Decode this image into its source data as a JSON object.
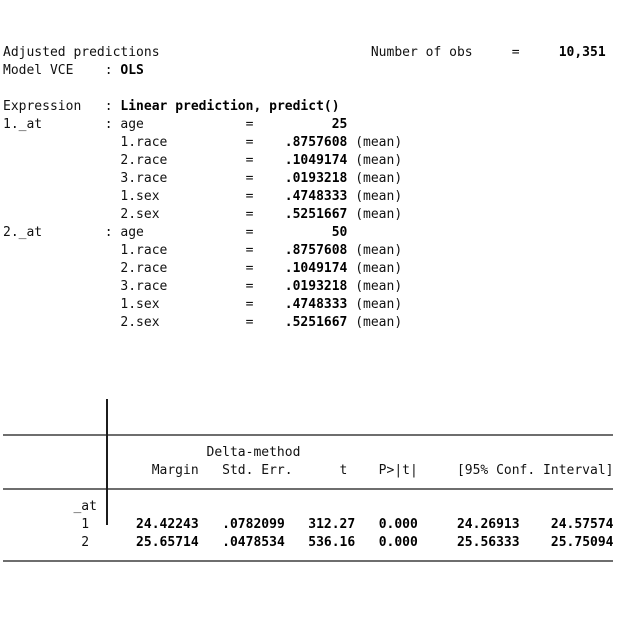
{
  "output": {
    "title": "Adjusted predictions",
    "number_of_obs": {
      "label": "Number of obs",
      "value": "10,351"
    },
    "model_vce": {
      "label": "Model VCE",
      "value": "OLS"
    },
    "expression": {
      "label": "Expression",
      "value": "Linear prediction, predict()"
    },
    "at_blocks": [
      {
        "label": "1._at",
        "var": "age",
        "value": "25",
        "terms": [
          {
            "name": "1.race",
            "value": ".8757608",
            "suffix": "(mean)"
          },
          {
            "name": "2.race",
            "value": ".1049174",
            "suffix": "(mean)"
          },
          {
            "name": "3.race",
            "value": ".0193218",
            "suffix": "(mean)"
          },
          {
            "name": "1.sex",
            "value": ".4748333",
            "suffix": "(mean)"
          },
          {
            "name": "2.sex",
            "value": ".5251667",
            "suffix": "(mean)"
          }
        ]
      },
      {
        "label": "2._at",
        "var": "age",
        "value": "50",
        "terms": [
          {
            "name": "1.race",
            "value": ".8757608",
            "suffix": "(mean)"
          },
          {
            "name": "2.race",
            "value": ".1049174",
            "suffix": "(mean)"
          },
          {
            "name": "3.race",
            "value": ".0193218",
            "suffix": "(mean)"
          },
          {
            "name": "1.sex",
            "value": ".4748333",
            "suffix": "(mean)"
          },
          {
            "name": "2.sex",
            "value": ".5251667",
            "suffix": "(mean)"
          }
        ]
      }
    ],
    "table": {
      "group_header": "Delta-method",
      "columns": [
        "Margin",
        "Std. Err.",
        "t",
        "P>|t|",
        "[95% Conf. Interval]"
      ],
      "row_group_label": "_at",
      "rows": [
        [
          "1",
          "24.42243",
          ".0782099",
          "312.27",
          "0.000",
          "24.26913",
          "24.57574"
        ],
        [
          "2",
          "25.65714",
          ".0478534",
          "536.16",
          "0.000",
          "25.56333",
          "25.75094"
        ]
      ]
    },
    "colors": {
      "text": "#111111",
      "bold_text": "#000000",
      "rule": "#6e6e6e",
      "divider": "#1c1c1c",
      "background": "#ffffff"
    }
  }
}
